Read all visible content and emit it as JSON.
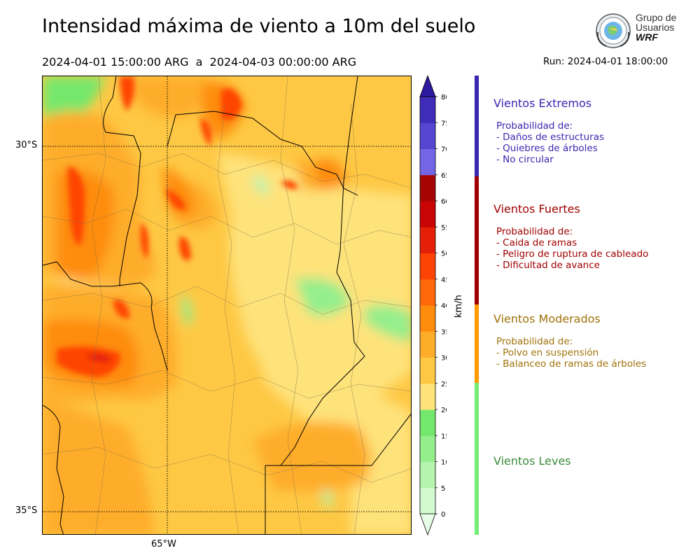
{
  "header": {
    "title": "Intensidad máxima de viento a 10m del suelo",
    "period_start": "2024-04-01 15:00:00 ARG",
    "period_sep": "a",
    "period_end": "2024-04-03 00:00:00 ARG",
    "run_label": "Run: 2024-04-01 18:00:00"
  },
  "logo": {
    "line1": "Grupo de",
    "line2": "Usuarios",
    "line3": "WRF"
  },
  "map": {
    "lat_labels": [
      "30°S",
      "35°S"
    ],
    "lon_labels": [
      "65°W"
    ]
  },
  "colorbar": {
    "unit": "km/h",
    "ticks": [
      "0",
      "5",
      "10",
      "15",
      "20",
      "25",
      "30",
      "35",
      "40",
      "45",
      "50",
      "55",
      "60",
      "65",
      "70",
      "75",
      "80"
    ],
    "colors": [
      "#e8fde8",
      "#d2f9cf",
      "#b5f4ae",
      "#95ee8c",
      "#74e86c",
      "#fee27a",
      "#fec844",
      "#fead2b",
      "#fe8c0c",
      "#fe6808",
      "#fe4404",
      "#e42008",
      "#c80404",
      "#a60404",
      "#7465e4",
      "#5446d0",
      "#3f2cb8",
      "#2e1aa0"
    ],
    "color_scale": "paleta continua 0–80 km/h"
  },
  "categories": [
    {
      "title": "Vientos Extremos",
      "color": "#3a28b0",
      "lines": [
        "Probabilidad de:",
        "- Daños de estructuras",
        "- Quiebres de árboles",
        "- No circular"
      ]
    },
    {
      "title": "Vientos Fuertes",
      "color": "#a00000",
      "lines": [
        "Probabilidad de:",
        "- Caida de ramas",
        "- Peligro de ruptura de cableado",
        "- Dificultad de avance"
      ]
    },
    {
      "title": "Vientos Moderados",
      "color": "#a0720a",
      "lines": [
        "Probabilidad de:",
        "- Polvo en suspensión",
        "- Balanceo de ramas de árboles"
      ]
    },
    {
      "title": "Vientos Leves",
      "color": "#3a8a3a",
      "lines": []
    }
  ],
  "category_bar_colors": [
    "#3a28b0",
    "#a00000",
    "#ff9a00",
    "#74ee74"
  ]
}
